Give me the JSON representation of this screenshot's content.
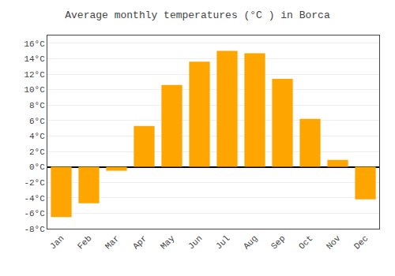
{
  "chart_data": {
    "type": "bar",
    "title": "Average monthly temperatures (°C ) in Borca",
    "categories": [
      "Jan",
      "Feb",
      "Mar",
      "Apr",
      "May",
      "Jun",
      "Jul",
      "Aug",
      "Sep",
      "Oct",
      "Nov",
      "Dec"
    ],
    "values": [
      -6.5,
      -4.7,
      -0.5,
      5.3,
      10.6,
      13.6,
      15.0,
      14.7,
      11.4,
      6.2,
      0.9,
      -4.2
    ],
    "color": "#FFA500",
    "ylim": [
      -8,
      17
    ],
    "yticks": [
      {
        "value": -8,
        "label": "-8°C"
      },
      {
        "value": -6,
        "label": "-6°C"
      },
      {
        "value": -4,
        "label": "-4°C"
      },
      {
        "value": -2,
        "label": "-2°C"
      },
      {
        "value": 0,
        "label": "0°C"
      },
      {
        "value": 2,
        "label": "2°C"
      },
      {
        "value": 4,
        "label": "4°C"
      },
      {
        "value": 6,
        "label": "6°C"
      },
      {
        "value": 8,
        "label": "8°C"
      },
      {
        "value": 10,
        "label": "10°C"
      },
      {
        "value": 12,
        "label": "12°C"
      },
      {
        "value": 14,
        "label": "14°C"
      },
      {
        "value": 16,
        "label": "16°C"
      }
    ],
    "grid": true
  }
}
